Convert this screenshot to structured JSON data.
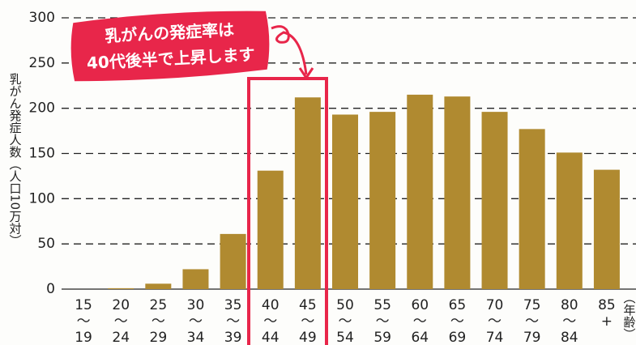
{
  "chart_data": {
    "type": "bar",
    "y_axis_label": "乳がん発症人数（人口10万対）",
    "x_axis_label": "（年齢）",
    "annotation": [
      "乳がんの発症率は",
      "40代後半で上昇します"
    ],
    "categories": [
      [
        "15",
        "〜",
        "19"
      ],
      [
        "20",
        "〜",
        "24"
      ],
      [
        "25",
        "〜",
        "29"
      ],
      [
        "30",
        "〜",
        "34"
      ],
      [
        "35",
        "〜",
        "39"
      ],
      [
        "40",
        "〜",
        "44"
      ],
      [
        "45",
        "〜",
        "49"
      ],
      [
        "50",
        "〜",
        "54"
      ],
      [
        "55",
        "〜",
        "59"
      ],
      [
        "60",
        "〜",
        "64"
      ],
      [
        "65",
        "〜",
        "69"
      ],
      [
        "70",
        "〜",
        "74"
      ],
      [
        "75",
        "〜",
        "79"
      ],
      [
        "80",
        "〜",
        "84"
      ],
      [
        "85",
        "+"
      ]
    ],
    "values": [
      0,
      1,
      6,
      22,
      61,
      131,
      212,
      193,
      196,
      215,
      213,
      196,
      177,
      151,
      132
    ],
    "color": "#b08a30",
    "ylim": [
      0,
      300
    ],
    "yticks": [
      0,
      50,
      100,
      150,
      200,
      250,
      300
    ],
    "grid": true
  }
}
